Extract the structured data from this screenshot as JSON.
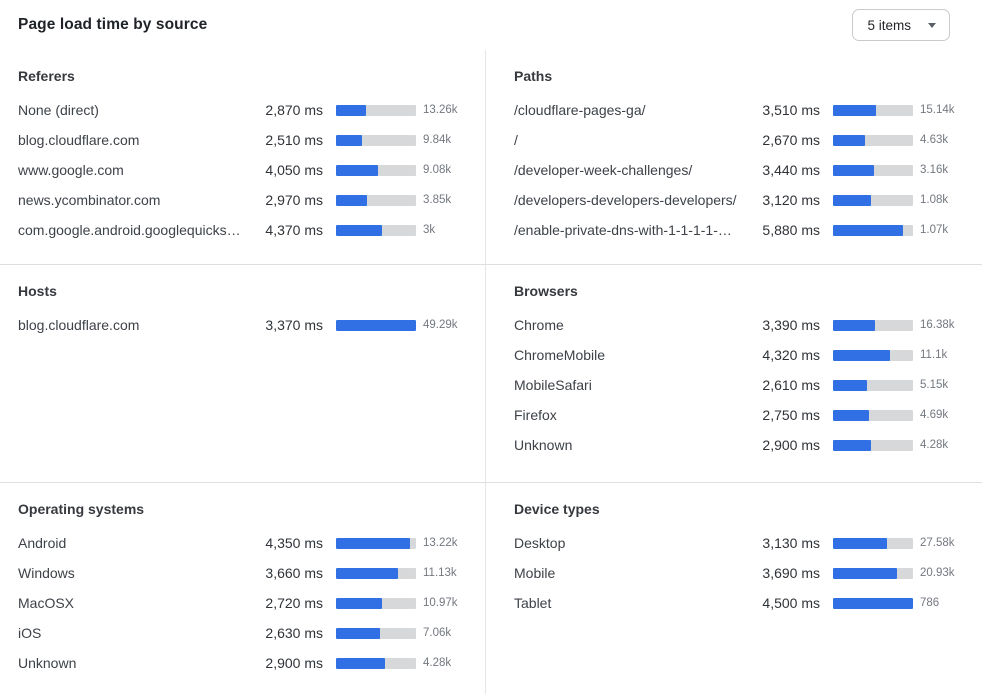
{
  "header": {
    "title": "Page load time by source",
    "items_dropdown": {
      "value": "5 items"
    }
  },
  "colors": {
    "bar_fill": "#3170e4",
    "bar_track": "#d7d8d9",
    "divider": "#e0e1e3"
  },
  "panels": [
    {
      "title": "Referers",
      "rows": [
        {
          "label": "None (direct)",
          "ms": "2,870 ms",
          "count": "13.26k",
          "bar_pct": 38
        },
        {
          "label": "blog.cloudflare.com",
          "ms": "2,510 ms",
          "count": "9.84k",
          "bar_pct": 33
        },
        {
          "label": "www.google.com",
          "ms": "4,050 ms",
          "count": "9.08k",
          "bar_pct": 53
        },
        {
          "label": "news.ycombinator.com",
          "ms": "2,970 ms",
          "count": "3.85k",
          "bar_pct": 39
        },
        {
          "label": "com.google.android.googlequicksearc…",
          "ms": "4,370 ms",
          "count": "3k",
          "bar_pct": 58
        }
      ]
    },
    {
      "title": "Paths",
      "rows": [
        {
          "label": "/cloudflare-pages-ga/",
          "ms": "3,510 ms",
          "count": "15.14k",
          "bar_pct": 54
        },
        {
          "label": "/",
          "ms": "2,670 ms",
          "count": "4.63k",
          "bar_pct": 40
        },
        {
          "label": "/developer-week-challenges/",
          "ms": "3,440 ms",
          "count": "3.16k",
          "bar_pct": 51
        },
        {
          "label": "/developers-developers-developers/",
          "ms": "3,120 ms",
          "count": "1.08k",
          "bar_pct": 47
        },
        {
          "label": "/enable-private-dns-with-1-1-1-1-on-…",
          "ms": "5,880 ms",
          "count": "1.07k",
          "bar_pct": 87
        }
      ]
    },
    {
      "title": "Hosts",
      "rows": [
        {
          "label": "blog.cloudflare.com",
          "ms": "3,370 ms",
          "count": "49.29k",
          "bar_pct": 100
        }
      ]
    },
    {
      "title": "Browsers",
      "rows": [
        {
          "label": "Chrome",
          "ms": "3,390 ms",
          "count": "16.38k",
          "bar_pct": 53
        },
        {
          "label": "ChromeMobile",
          "ms": "4,320 ms",
          "count": "11.1k",
          "bar_pct": 71
        },
        {
          "label": "MobileSafari",
          "ms": "2,610 ms",
          "count": "5.15k",
          "bar_pct": 42
        },
        {
          "label": "Firefox",
          "ms": "2,750 ms",
          "count": "4.69k",
          "bar_pct": 45
        },
        {
          "label": "Unknown",
          "ms": "2,900 ms",
          "count": "4.28k",
          "bar_pct": 48
        }
      ]
    },
    {
      "title": "Operating systems",
      "rows": [
        {
          "label": "Android",
          "ms": "4,350 ms",
          "count": "13.22k",
          "bar_pct": 92
        },
        {
          "label": "Windows",
          "ms": "3,660 ms",
          "count": "11.13k",
          "bar_pct": 77
        },
        {
          "label": "MacOSX",
          "ms": "2,720 ms",
          "count": "10.97k",
          "bar_pct": 57
        },
        {
          "label": "iOS",
          "ms": "2,630 ms",
          "count": "7.06k",
          "bar_pct": 55
        },
        {
          "label": "Unknown",
          "ms": "2,900 ms",
          "count": "4.28k",
          "bar_pct": 61
        }
      ]
    },
    {
      "title": "Device types",
      "rows": [
        {
          "label": "Desktop",
          "ms": "3,130 ms",
          "count": "27.58k",
          "bar_pct": 67
        },
        {
          "label": "Mobile",
          "ms": "3,690 ms",
          "count": "20.93k",
          "bar_pct": 80
        },
        {
          "label": "Tablet",
          "ms": "4,500 ms",
          "count": "786",
          "bar_pct": 100
        }
      ]
    }
  ]
}
